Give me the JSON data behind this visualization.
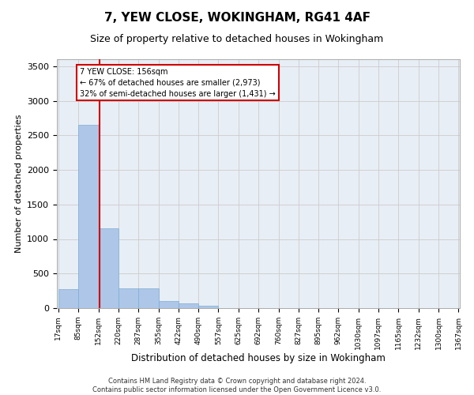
{
  "title": "7, YEW CLOSE, WOKINGHAM, RG41 4AF",
  "subtitle": "Size of property relative to detached houses in Wokingham",
  "xlabel": "Distribution of detached houses by size in Wokingham",
  "ylabel": "Number of detached properties",
  "footer_line1": "Contains HM Land Registry data © Crown copyright and database right 2024.",
  "footer_line2": "Contains public sector information licensed under the Open Government Licence v3.0.",
  "annotation_title": "7 YEW CLOSE: 156sqm",
  "annotation_line1": "← 67% of detached houses are smaller (2,973)",
  "annotation_line2": "32% of semi-detached houses are larger (1,431) →",
  "property_size_sqm": 156,
  "bar_edges": [
    17,
    85,
    152,
    220,
    287,
    355,
    422,
    490,
    557,
    625,
    692,
    760,
    827,
    895,
    962,
    1030,
    1097,
    1165,
    1232,
    1300,
    1367
  ],
  "bar_values": [
    280,
    2650,
    1150,
    290,
    290,
    100,
    65,
    40,
    0,
    0,
    0,
    0,
    0,
    0,
    0,
    0,
    0,
    0,
    0,
    0
  ],
  "bar_color": "#aec6e8",
  "bar_edgecolor": "#7bafd4",
  "vline_color": "#cc0000",
  "vline_x": 156,
  "ylim": [
    0,
    3600
  ],
  "yticks": [
    0,
    500,
    1000,
    1500,
    2000,
    2500,
    3000,
    3500
  ],
  "annotation_box_color": "#cc0000",
  "annotation_bg_color": "#ffffff",
  "grid_color": "#cccccc",
  "bg_color": "#e8eef5",
  "title_fontsize": 11,
  "subtitle_fontsize": 9,
  "tick_label_fontsize": 6.5,
  "ylabel_fontsize": 8,
  "xlabel_fontsize": 8.5
}
